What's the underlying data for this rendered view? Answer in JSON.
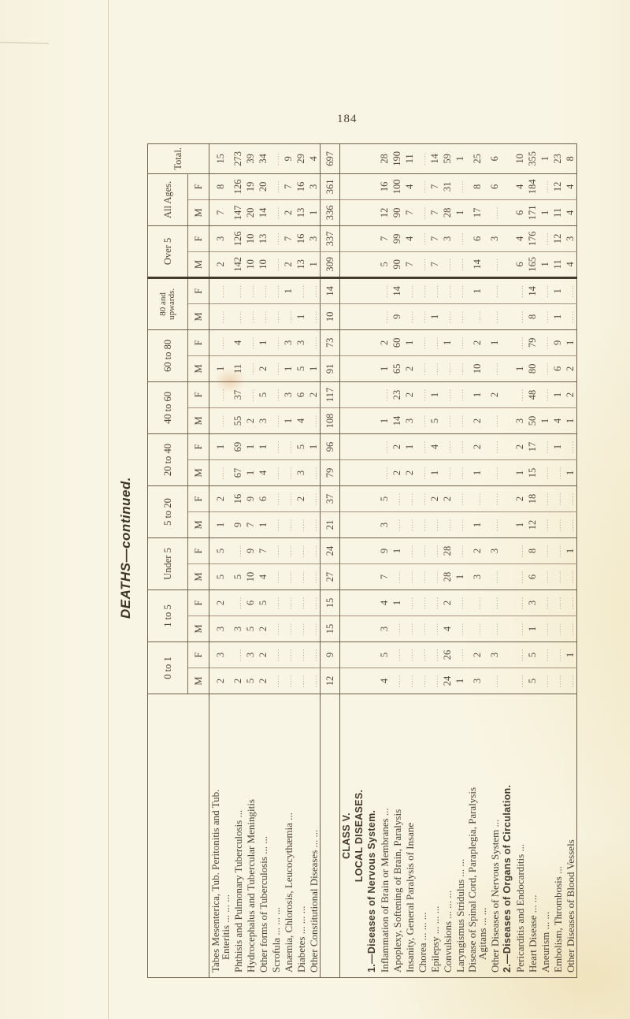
{
  "page": {
    "number": "184",
    "title": "DEATHS—continued."
  },
  "table": {
    "age_groups": [
      {
        "label": "0 to 1",
        "sub": [
          "M",
          "F"
        ]
      },
      {
        "label": "1 to 5",
        "sub": [
          "M",
          "F"
        ]
      },
      {
        "label": "Under 5",
        "sub": [
          "M",
          "F"
        ]
      },
      {
        "label": "5 to 20",
        "sub": [
          "M",
          "F"
        ]
      },
      {
        "label": "20 to 40",
        "sub": [
          "M",
          "F"
        ]
      },
      {
        "label": "40 to 60",
        "sub": [
          "M",
          "F"
        ]
      },
      {
        "label": "60 to 80",
        "sub": [
          "M",
          "F"
        ]
      },
      {
        "label": "80 and upwards.",
        "sub": [
          "M",
          "F"
        ],
        "two_line": true
      },
      {
        "label": "Over 5",
        "sub": [
          "M",
          "F"
        ]
      },
      {
        "label": "All Ages.",
        "sub": [
          "M",
          "F"
        ]
      },
      {
        "label": "Total.",
        "sub": []
      }
    ],
    "rows": [
      {
        "type": "data",
        "label": "Tabes Mesenterica, Tub. Peritonitis and Tub.",
        "label2": "Enteritis ... ... ...",
        "values": [
          "2",
          "3",
          "3",
          "2",
          "5",
          "5",
          "1",
          "2",
          "",
          "1",
          "",
          "",
          "1",
          "",
          "",
          "",
          "2",
          "3",
          "7",
          "8",
          "15"
        ]
      },
      {
        "type": "data",
        "label": "Phthisis and Pulmonary Tuberculosis ...",
        "values": [
          "2",
          "",
          "3",
          "",
          "5",
          "",
          "9",
          "16",
          "67",
          "69",
          "55",
          "37",
          "11",
          "4",
          "",
          "",
          "142",
          "126",
          "147",
          "126",
          "273"
        ]
      },
      {
        "type": "data",
        "label": "Hydrocephalus and Tubercular Meningitis",
        "values": [
          "5",
          "3",
          "5",
          "6",
          "10",
          "9",
          "7",
          "9",
          "1",
          "1",
          "2",
          "",
          "",
          "",
          "",
          "",
          "10",
          "10",
          "20",
          "19",
          "39"
        ]
      },
      {
        "type": "data",
        "label": "Other forms of Tuberculosis ... ...",
        "values": [
          "2",
          "2",
          "2",
          "5",
          "4",
          "7",
          "1",
          "6",
          "4",
          "1",
          "3",
          "5",
          "2",
          "1",
          "",
          "",
          "10",
          "13",
          "14",
          "20",
          "34"
        ]
      },
      {
        "type": "data",
        "label": "Scrofula ... ... ...",
        "values": [
          "",
          "",
          "",
          "",
          "",
          "",
          "",
          "",
          "",
          "",
          "",
          "",
          "",
          "",
          "",
          "",
          "",
          "",
          "",
          "",
          ""
        ]
      },
      {
        "type": "data",
        "label": "Anæmia, Chlorosis, Leucocythæmia ...",
        "values": [
          "",
          "",
          "",
          "",
          "",
          "",
          "",
          "",
          "",
          "",
          "1",
          "3",
          "1",
          "3",
          "",
          "1",
          "2",
          "7",
          "2",
          "7",
          "9"
        ]
      },
      {
        "type": "data",
        "label": "Diabetes ... ... ...",
        "values": [
          "",
          "",
          "",
          "",
          "",
          "",
          "",
          "2",
          "3",
          "5",
          "4",
          "6",
          "5",
          "3",
          "1",
          "",
          "13",
          "16",
          "13",
          "16",
          "29"
        ]
      },
      {
        "type": "data",
        "label": "Other Constitutional Diseases ... ...",
        "values": [
          "",
          "",
          "",
          "",
          "",
          "",
          "",
          "",
          "",
          "1",
          "",
          "2",
          "1",
          "",
          "",
          "",
          "1",
          "3",
          "1",
          "3",
          "4"
        ]
      },
      {
        "type": "total",
        "values": [
          "12",
          "9",
          "15",
          "15",
          "27",
          "24",
          "21",
          "37",
          "79",
          "96",
          "108",
          "117",
          "91",
          "73",
          "10",
          "14",
          "309",
          "337",
          "336",
          "361",
          "697"
        ]
      },
      {
        "type": "heading",
        "label": "CLASS V.",
        "align": "center"
      },
      {
        "type": "heading",
        "label": "LOCAL DISEASES.",
        "align": "center"
      },
      {
        "type": "heading",
        "label": "1.—Diseases of Nervous System.",
        "align": "left"
      },
      {
        "type": "data",
        "label": "Inflammation of Brain or Membranes ...",
        "values": [
          "4",
          "5",
          "3",
          "4",
          "7",
          "9",
          "3",
          "5",
          "",
          "",
          "1",
          "",
          "1",
          "2",
          "",
          "",
          "5",
          "7",
          "12",
          "16",
          "28"
        ]
      },
      {
        "type": "data",
        "label": "Apoplexy, Softening of Brain, Paralysis",
        "values": [
          "",
          "",
          "",
          "1",
          "",
          "1",
          "",
          "",
          "2",
          "2",
          "14",
          "23",
          "65",
          "60",
          "9",
          "14",
          "90",
          "99",
          "90",
          "100",
          "190"
        ]
      },
      {
        "type": "data",
        "label": "Insanity, General Paralysis of Insane",
        "values": [
          "",
          "",
          "",
          "",
          "",
          "",
          "",
          "",
          "2",
          "1",
          "3",
          "2",
          "2",
          "1",
          "",
          "",
          "7",
          "4",
          "7",
          "4",
          "11"
        ]
      },
      {
        "type": "data",
        "label": "Chorea ... ... ...",
        "values": [
          "",
          "",
          "",
          "",
          "",
          "",
          "",
          "",
          "",
          "",
          "",
          "",
          "",
          "",
          "",
          "",
          "",
          "",
          "",
          "",
          ""
        ]
      },
      {
        "type": "data",
        "label": "Epilepsy ... ... ...",
        "values": [
          "",
          "",
          "",
          "",
          "",
          "",
          "",
          "2",
          "1",
          "4",
          "5",
          "1",
          "",
          "",
          "1",
          "",
          "7",
          "7",
          "7",
          "7",
          "14"
        ]
      },
      {
        "type": "data",
        "label": "Convulsions ... ... ...",
        "values": [
          "24",
          "26",
          "4",
          "2",
          "28",
          "28",
          "",
          "2",
          "",
          "",
          "",
          "",
          "",
          "1",
          "",
          "",
          "",
          "3",
          "28",
          "31",
          "59"
        ]
      },
      {
        "type": "data",
        "label": "Laryngismus Stridulus ... ...",
        "values": [
          "1",
          "",
          "",
          "",
          "1",
          "",
          "",
          "",
          "",
          "",
          "",
          "",
          "",
          "",
          "",
          "",
          "",
          "",
          "1",
          "",
          "1"
        ]
      },
      {
        "type": "data",
        "label": "Disease of Spinal Cord, Paraplegia, Paralysis",
        "label2": "Agitans ... ...",
        "values": [
          "3",
          "2",
          "",
          "",
          "3",
          "2",
          "1",
          "",
          "1",
          "2",
          "2",
          "1",
          "10",
          "2",
          "",
          "1",
          "14",
          "6",
          "17",
          "8",
          "25"
        ]
      },
      {
        "type": "data",
        "label": "Other Diseases of Nervous System ...",
        "values": [
          "",
          "3",
          "",
          "",
          "",
          "3",
          "",
          "",
          "",
          "",
          "",
          "2",
          "",
          "1",
          "",
          "",
          "",
          "3",
          "",
          "6",
          "6"
        ]
      },
      {
        "type": "heading",
        "label": "2.—Diseases of Organs of Circulation.",
        "align": "left"
      },
      {
        "type": "data",
        "label": "Pericarditis and Endocarditis ...",
        "values": [
          "",
          "",
          "",
          "",
          "",
          "",
          "1",
          "2",
          "1",
          "2",
          "3",
          "",
          "1",
          "",
          "",
          "",
          "6",
          "4",
          "6",
          "4",
          "10"
        ]
      },
      {
        "type": "data",
        "label": "Heart Disease ... ...",
        "values": [
          "5",
          "5",
          "1",
          "3",
          "6",
          "8",
          "12",
          "18",
          "15",
          "17",
          "50",
          "48",
          "80",
          "79",
          "8",
          "14",
          "165",
          "176",
          "171",
          "184",
          "355"
        ]
      },
      {
        "type": "data",
        "label": "Aneurism ... ...",
        "values": [
          "",
          "",
          "",
          "",
          "",
          "",
          "",
          "",
          "",
          "",
          "1",
          "",
          "",
          "",
          "",
          "",
          "1",
          "",
          "1",
          "",
          "1"
        ]
      },
      {
        "type": "data",
        "label": "Embolism, Thrombosis ...",
        "values": [
          "",
          "",
          "",
          "",
          "",
          "",
          "",
          "",
          "",
          "1",
          "4",
          "1",
          "6",
          "9",
          "1",
          "1",
          "11",
          "12",
          "11",
          "12",
          "23"
        ]
      },
      {
        "type": "data",
        "label": "Other Diseases of Blood Vessels",
        "values": [
          "",
          "1",
          "",
          "",
          "",
          "1",
          "",
          "",
          "1",
          "",
          "1",
          "2",
          "2",
          "1",
          "",
          "",
          "4",
          "3",
          "4",
          "4",
          "8"
        ]
      }
    ]
  }
}
